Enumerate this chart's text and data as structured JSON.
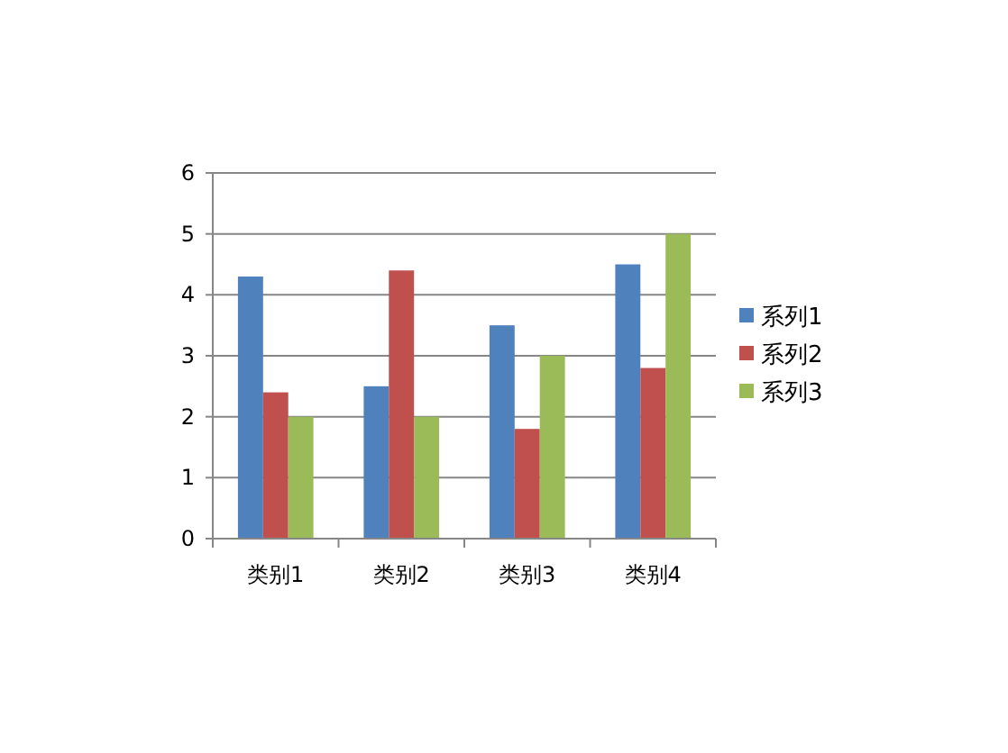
{
  "chart_data": {
    "type": "bar",
    "categories": [
      "类别1",
      "类别2",
      "类别3",
      "类别4"
    ],
    "series": [
      {
        "name": "系列1",
        "color": "#4f81bd",
        "values": [
          4.3,
          2.5,
          3.5,
          4.5
        ]
      },
      {
        "name": "系列2",
        "color": "#c0504d",
        "values": [
          2.4,
          4.4,
          1.8,
          2.8
        ]
      },
      {
        "name": "系列3",
        "color": "#9bbb59",
        "values": [
          2,
          2,
          3,
          5
        ]
      }
    ],
    "ylim": [
      0,
      6
    ],
    "yticks": [
      0,
      1,
      2,
      3,
      4,
      5,
      6
    ],
    "grid": "y",
    "legend": "right"
  }
}
